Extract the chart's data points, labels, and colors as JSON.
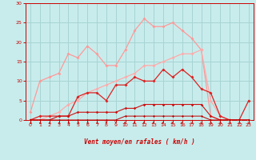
{
  "bg_color": "#c8ecec",
  "grid_color": "#a8d4d4",
  "title": "Vent moyen/en rafales ( km/h )",
  "xlim": [
    -0.5,
    23.5
  ],
  "ylim": [
    0,
    30
  ],
  "xticks": [
    0,
    1,
    2,
    3,
    4,
    5,
    6,
    7,
    8,
    9,
    10,
    11,
    12,
    13,
    14,
    15,
    16,
    17,
    18,
    19,
    20,
    21,
    22,
    23
  ],
  "yticks": [
    0,
    5,
    10,
    15,
    20,
    25,
    30
  ],
  "line1": {
    "x": [
      0,
      1,
      2,
      3,
      4,
      5,
      6,
      7,
      8,
      9,
      10,
      11,
      12,
      13,
      14,
      15,
      16,
      17,
      18,
      19,
      20,
      21,
      22,
      23
    ],
    "y": [
      2,
      10,
      11,
      12,
      17,
      16,
      19,
      17,
      14,
      14,
      18,
      23,
      26,
      24,
      24,
      25,
      23,
      21,
      18,
      1,
      0,
      0,
      0,
      0
    ],
    "color": "#ff9999",
    "lw": 0.9,
    "marker": "D",
    "ms": 2.0
  },
  "line2": {
    "x": [
      0,
      1,
      2,
      3,
      4,
      5,
      6,
      7,
      8,
      9,
      10,
      11,
      12,
      13,
      14,
      15,
      16,
      17,
      18,
      19,
      20,
      21,
      22,
      23
    ],
    "y": [
      0,
      0,
      1,
      2,
      4,
      5,
      7,
      8,
      9,
      10,
      11,
      12,
      14,
      14,
      15,
      16,
      17,
      17,
      18,
      5,
      1,
      0,
      0,
      0
    ],
    "color": "#ffaaaa",
    "lw": 0.9,
    "marker": "D",
    "ms": 2.0
  },
  "line3": {
    "x": [
      0,
      1,
      2,
      3,
      4,
      5,
      6,
      7,
      8,
      9,
      10,
      11,
      12,
      13,
      14,
      15,
      16,
      17,
      18,
      19,
      20,
      21,
      22,
      23
    ],
    "y": [
      0,
      1,
      1,
      1,
      1,
      6,
      7,
      7,
      5,
      9,
      9,
      11,
      10,
      10,
      13,
      11,
      13,
      11,
      8,
      7,
      1,
      0,
      0,
      5
    ],
    "color": "#dd2222",
    "lw": 0.9,
    "marker": "D",
    "ms": 2.0
  },
  "line4": {
    "x": [
      0,
      1,
      2,
      3,
      4,
      5,
      6,
      7,
      8,
      9,
      10,
      11,
      12,
      13,
      14,
      15,
      16,
      17,
      18,
      19,
      20,
      21,
      22,
      23
    ],
    "y": [
      0,
      0,
      0,
      1,
      1,
      2,
      2,
      2,
      2,
      2,
      3,
      3,
      4,
      4,
      4,
      4,
      4,
      4,
      4,
      1,
      0,
      0,
      0,
      0
    ],
    "color": "#cc1111",
    "lw": 0.8,
    "marker": "D",
    "ms": 1.8
  },
  "line5": {
    "x": [
      0,
      1,
      2,
      3,
      4,
      5,
      6,
      7,
      8,
      9,
      10,
      11,
      12,
      13,
      14,
      15,
      16,
      17,
      18,
      19,
      20,
      21,
      22,
      23
    ],
    "y": [
      0,
      0,
      0,
      0,
      0,
      0,
      0,
      0,
      0,
      0,
      1,
      1,
      1,
      1,
      1,
      1,
      1,
      1,
      1,
      0,
      0,
      0,
      0,
      0
    ],
    "color": "#bb0000",
    "lw": 0.7,
    "marker": "D",
    "ms": 1.5
  },
  "title_color": "#cc0000",
  "tick_color": "#cc0000",
  "spine_color": "#cc0000",
  "arrow_color": "#cc0000"
}
